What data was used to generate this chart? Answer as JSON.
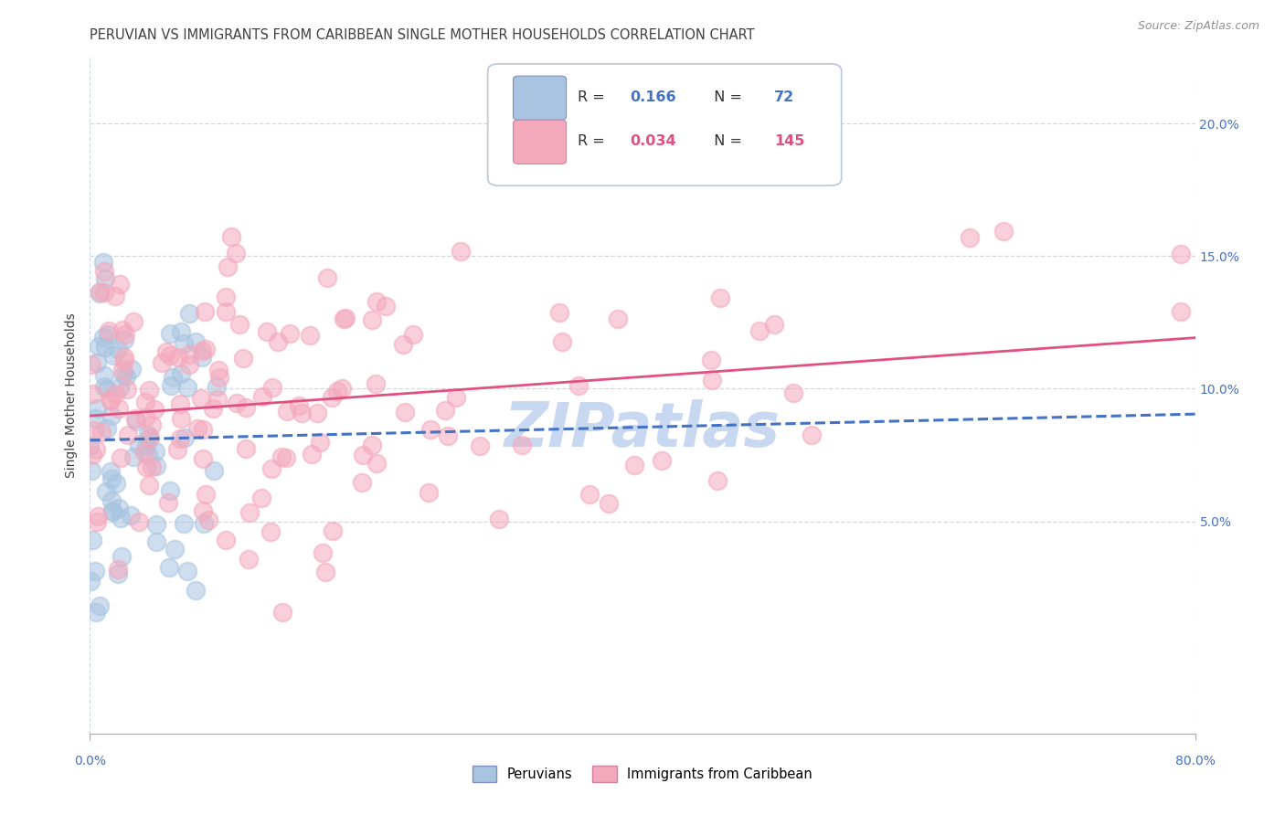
{
  "title": "PERUVIAN VS IMMIGRANTS FROM CARIBBEAN SINGLE MOTHER HOUSEHOLDS CORRELATION CHART",
  "source": "Source: ZipAtlas.com",
  "ylabel": "Single Mother Households",
  "xlim": [
    0.0,
    0.8
  ],
  "ylim": [
    -0.03,
    0.225
  ],
  "yticks": [
    0.05,
    0.1,
    0.15,
    0.2
  ],
  "ytick_labels": [
    "5.0%",
    "10.0%",
    "15.0%",
    "20.0%"
  ],
  "peruvian_R": 0.166,
  "peruvian_N": 72,
  "caribbean_R": 0.034,
  "caribbean_N": 145,
  "peruvian_color": "#a8c4e0",
  "caribbean_color": "#f4a8bc",
  "peruvian_line_color": "#4472c4",
  "caribbean_line_color": "#e05080",
  "title_color": "#404040",
  "axis_label_color": "#4472c4",
  "background_color": "#ffffff",
  "grid_color": "#c8d4e8",
  "watermark_color": "#c8d8f0",
  "legend_R_color": "#4472c4",
  "legend_N_color": "#e05080"
}
